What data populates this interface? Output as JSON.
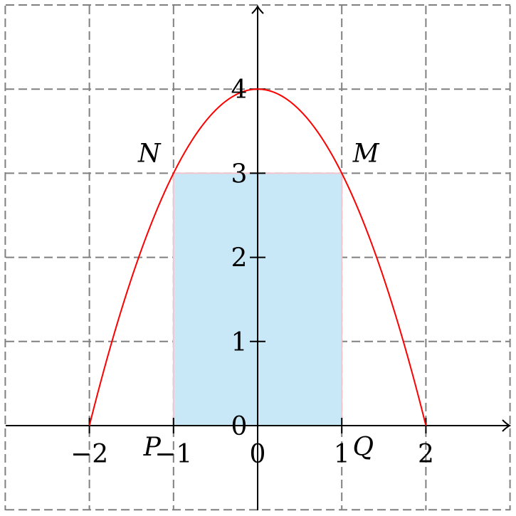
{
  "chart_data": {
    "type": "line",
    "title": "",
    "xlabel": "",
    "ylabel": "",
    "xlim": [
      -3,
      3
    ],
    "ylim": [
      -1,
      5
    ],
    "grid": true,
    "x_ticks": [
      -2,
      -1,
      0,
      1,
      2
    ],
    "y_ticks": [
      0,
      1,
      2,
      3,
      4
    ],
    "x_tick_labels": [
      "−2",
      "−1",
      "0",
      "1",
      "2"
    ],
    "y_tick_labels": [
      "0",
      "1",
      "2",
      "3",
      "4"
    ],
    "curve": {
      "equation_shape": "parabola",
      "vertex": [
        0,
        4
      ],
      "roots": [
        -2,
        2
      ],
      "color": "#ff0000",
      "x": [
        -2,
        -1.5,
        -1,
        -0.5,
        0,
        0.5,
        1,
        1.5,
        2
      ],
      "y": [
        0,
        1.75,
        3,
        3.75,
        4,
        3.75,
        3,
        1.75,
        0
      ]
    },
    "rectangle": {
      "corners": {
        "N": [
          -1,
          3
        ],
        "M": [
          1,
          3
        ],
        "P": [
          -1,
          0
        ],
        "Q": [
          1,
          0
        ]
      },
      "fill": "#c8e8f8",
      "edge": "#f3c6cf"
    },
    "annotations": [
      {
        "text": "N",
        "x": -1,
        "y": 3
      },
      {
        "text": "M",
        "x": 1,
        "y": 3
      },
      {
        "text": "P",
        "x": -1,
        "y": 0
      },
      {
        "text": "Q",
        "x": 1,
        "y": 0
      }
    ]
  }
}
